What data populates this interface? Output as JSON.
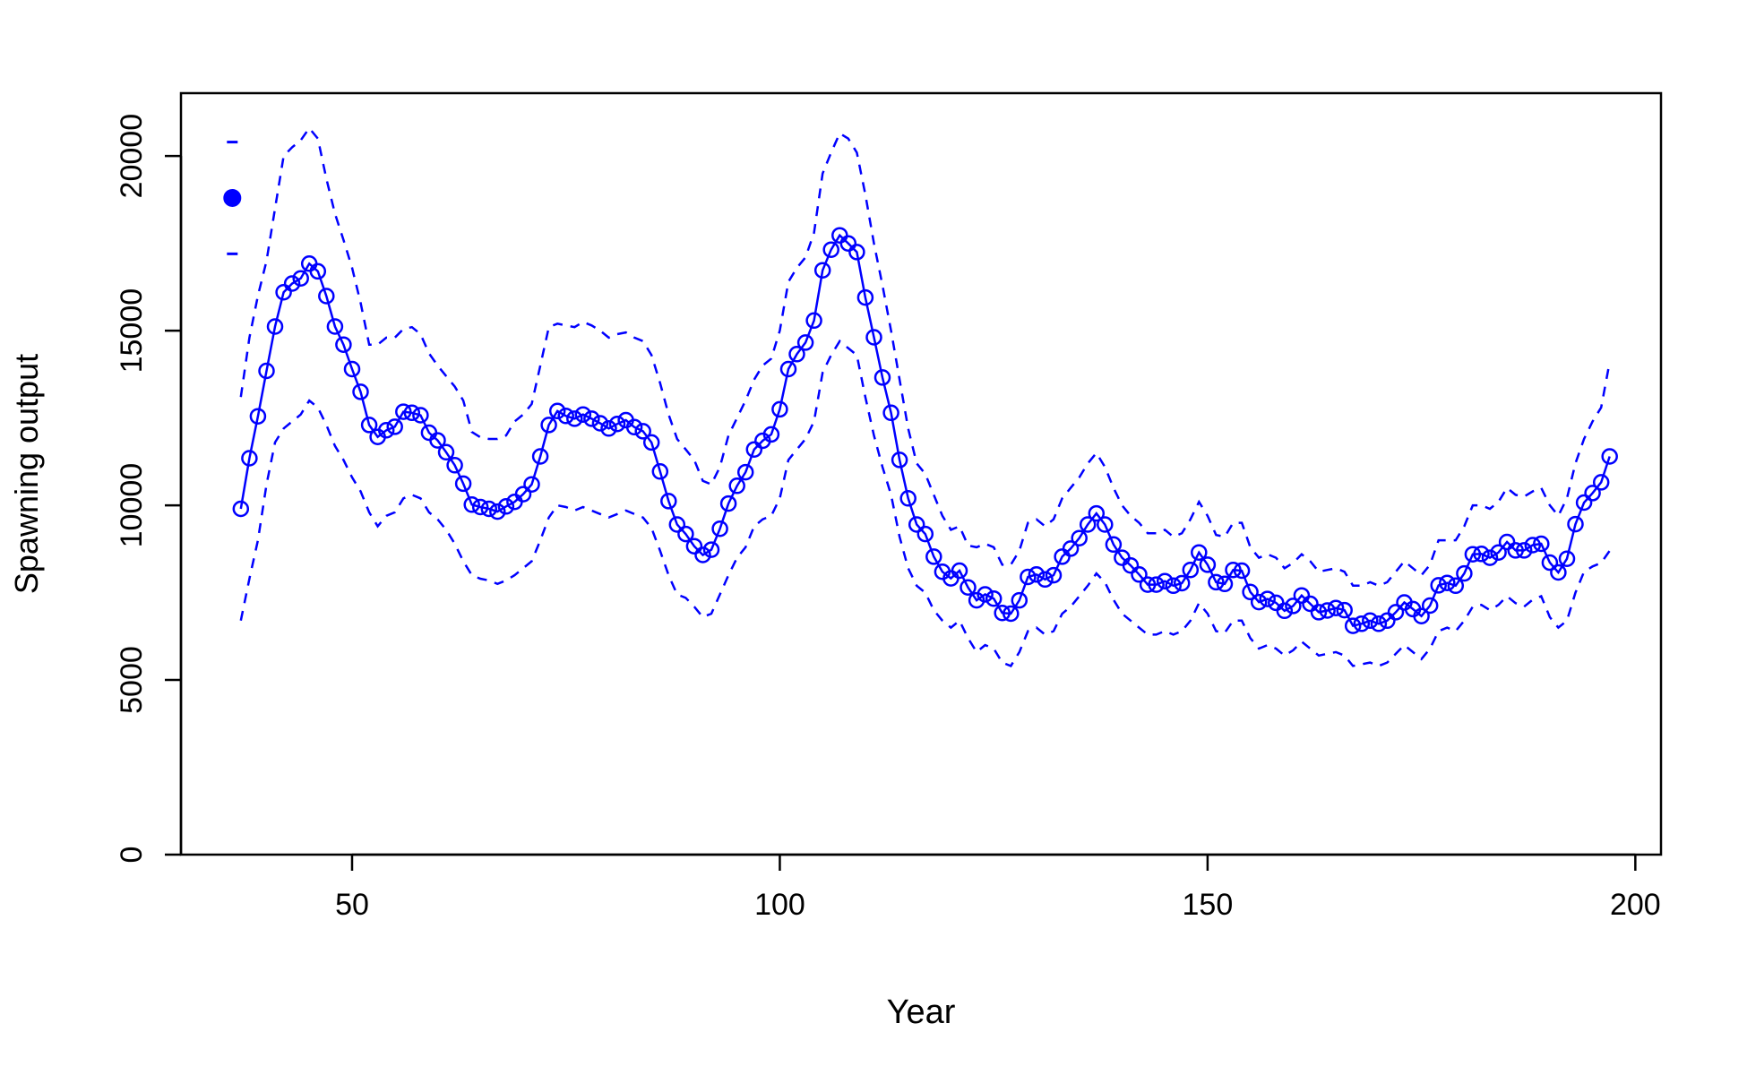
{
  "chart_data": {
    "type": "line",
    "title": "",
    "xlabel": "Year",
    "ylabel": "Spawning output",
    "xlim": [
      30,
      203
    ],
    "ylim": [
      0,
      21800
    ],
    "xticks": [
      50,
      100,
      150,
      200
    ],
    "yticks": [
      0,
      5000,
      10000,
      15000,
      20000
    ],
    "grid": false,
    "color": "#0000ff",
    "initial": {
      "x": 36,
      "value": 18800,
      "lower": 17200,
      "upper": 20400
    },
    "x_start": 37,
    "x_end": 197,
    "series": [
      {
        "style": "solid line with open circles",
        "values": [
          9900,
          11350,
          12550,
          13850,
          15120,
          16100,
          16350,
          16500,
          16920,
          16700,
          15990,
          15120,
          14600,
          13900,
          13250,
          12300,
          11960,
          12150,
          12250,
          12680,
          12650,
          12580,
          12080,
          11860,
          11520,
          11150,
          10620,
          10020,
          9950,
          9900,
          9820,
          9970,
          10100,
          10320,
          10600,
          11400,
          12300,
          12700,
          12560,
          12480,
          12600,
          12480,
          12350,
          12200,
          12330,
          12440,
          12240,
          12120,
          11800,
          10970,
          10120,
          9450,
          9180,
          8830,
          8580,
          8730,
          9330,
          10050,
          10560,
          10950,
          11600,
          11850,
          12030,
          12750,
          13900,
          14330,
          14660,
          15290,
          16730,
          17320,
          17730,
          17500,
          17250,
          15950,
          14810,
          13660,
          12650,
          11300,
          10200,
          9450,
          9180,
          8530,
          8100,
          7910,
          8130,
          7650,
          7280,
          7450,
          7330,
          6920,
          6900,
          7280,
          7950,
          8020,
          7880,
          8000,
          8530,
          8760,
          9060,
          9450,
          9770,
          9450,
          8880,
          8500,
          8280,
          8020,
          7730,
          7730,
          7830,
          7700,
          7770,
          8150,
          8650,
          8300,
          7800,
          7750,
          8150,
          8130,
          7520,
          7230,
          7320,
          7210,
          6980,
          7120,
          7420,
          7180,
          6940,
          6990,
          7060,
          7000,
          6550,
          6610,
          6700,
          6610,
          6700,
          6940,
          7220,
          7030,
          6830,
          7130,
          7710,
          7780,
          7700,
          8050,
          8600,
          8610,
          8500,
          8650,
          8950,
          8710,
          8710,
          8860,
          8900,
          8360,
          8080,
          8470,
          9460,
          10080,
          10350,
          10660,
          11400
        ]
      },
      {
        "style": "dashed upper bound",
        "values": [
          13100,
          14800,
          16000,
          17000,
          18500,
          20000,
          20250,
          20450,
          20800,
          20500,
          19350,
          18350,
          17600,
          16800,
          15800,
          14600,
          14600,
          14800,
          14800,
          15050,
          15100,
          14900,
          14350,
          14000,
          13700,
          13400,
          13000,
          12100,
          11950,
          11900,
          11900,
          12000,
          12400,
          12600,
          12900,
          14000,
          15100,
          15200,
          15150,
          15100,
          15250,
          15150,
          15000,
          14800,
          14900,
          14950,
          14800,
          14700,
          14300,
          13500,
          12600,
          11900,
          11600,
          11300,
          10700,
          10600,
          11100,
          12000,
          12500,
          13000,
          13600,
          14000,
          14200,
          15000,
          16400,
          16800,
          17100,
          17800,
          19500,
          20100,
          20650,
          20500,
          20100,
          18900,
          17500,
          16300,
          15000,
          13600,
          12200,
          11200,
          10900,
          10300,
          9700,
          9300,
          9400,
          8850,
          8800,
          8900,
          8800,
          8300,
          8300,
          8700,
          9500,
          9600,
          9400,
          9600,
          10200,
          10500,
          10800,
          11200,
          11500,
          11100,
          10500,
          10000,
          9700,
          9500,
          9200,
          9200,
          9300,
          9100,
          9200,
          9600,
          10100,
          9700,
          9150,
          9100,
          9500,
          9500,
          8800,
          8500,
          8600,
          8500,
          8200,
          8350,
          8600,
          8400,
          8100,
          8150,
          8200,
          8100,
          7700,
          7700,
          7800,
          7700,
          7800,
          8100,
          8400,
          8200,
          8000,
          8300,
          9000,
          9000,
          9000,
          9400,
          10000,
          10000,
          9900,
          10100,
          10500,
          10300,
          10250,
          10400,
          10500,
          10000,
          9700,
          10200,
          11200,
          11900,
          12400,
          12800,
          14100
        ]
      },
      {
        "style": "dashed lower bound",
        "values": [
          6700,
          7900,
          9000,
          10600,
          11800,
          12200,
          12400,
          12600,
          13000,
          12800,
          12300,
          11700,
          11300,
          10800,
          10400,
          9800,
          9400,
          9700,
          9800,
          10200,
          10300,
          10200,
          9800,
          9600,
          9300,
          8900,
          8400,
          8000,
          7900,
          7850,
          7750,
          7850,
          8000,
          8200,
          8400,
          9000,
          9650,
          10000,
          9950,
          9850,
          9950,
          9850,
          9750,
          9650,
          9750,
          9850,
          9750,
          9650,
          9350,
          8700,
          8000,
          7450,
          7350,
          7100,
          6800,
          6900,
          7450,
          8000,
          8500,
          8800,
          9400,
          9600,
          9700,
          10200,
          11300,
          11600,
          11900,
          12400,
          13800,
          14300,
          14700,
          14500,
          14300,
          13100,
          12000,
          11100,
          10300,
          9100,
          8200,
          7700,
          7500,
          7000,
          6700,
          6500,
          6700,
          6200,
          5800,
          6000,
          5900,
          5500,
          5400,
          5800,
          6400,
          6500,
          6300,
          6400,
          6900,
          7100,
          7400,
          7700,
          8050,
          7800,
          7300,
          6900,
          6700,
          6500,
          6300,
          6300,
          6400,
          6300,
          6400,
          6700,
          7200,
          6900,
          6400,
          6350,
          6700,
          6700,
          6200,
          5900,
          6000,
          5900,
          5700,
          5850,
          6100,
          5900,
          5700,
          5750,
          5800,
          5700,
          5400,
          5450,
          5500,
          5400,
          5500,
          5750,
          6000,
          5800,
          5600,
          5900,
          6400,
          6500,
          6400,
          6700,
          7100,
          7150,
          7000,
          7150,
          7400,
          7200,
          7100,
          7300,
          7400,
          6800,
          6500,
          6700,
          7500,
          8100,
          8250,
          8350,
          8700
        ]
      }
    ]
  }
}
